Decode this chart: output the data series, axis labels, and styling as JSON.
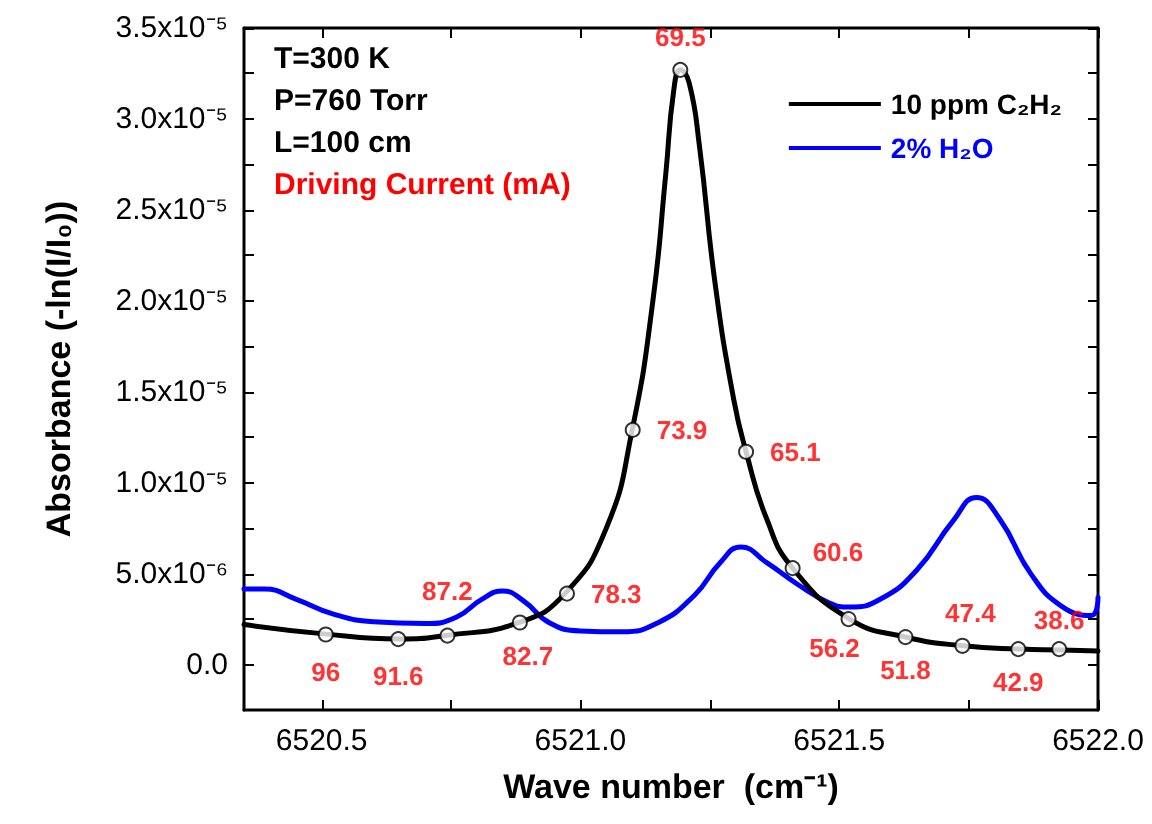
{
  "chart_data": {
    "type": "line",
    "xlabel": "Wave number  (cm⁻¹)",
    "ylabel": "Absorbance (-ln(I/I₀))",
    "xlim": [
      6520.35,
      6522.0
    ],
    "xticks": [
      {
        "value": 6520.5,
        "label": "6520.5"
      },
      {
        "value": 6520.75,
        "label": null
      },
      {
        "value": 6521.0,
        "label": "6521.0"
      },
      {
        "value": 6521.25,
        "label": null
      },
      {
        "value": 6521.5,
        "label": "6521.5"
      },
      {
        "value": 6521.75,
        "label": null
      },
      {
        "value": 6522.0,
        "label": "6522.0"
      }
    ],
    "ylim": [
      -2.5e-06,
      3.5e-05
    ],
    "yticks": [
      {
        "value": 0,
        "label": "0.0"
      },
      {
        "value": 2.5e-06,
        "label": null
      },
      {
        "value": 5e-06,
        "label": "5.0x10⁻⁶"
      },
      {
        "value": 7.5e-06,
        "label": null
      },
      {
        "value": 1e-05,
        "label": "1.0x10⁻⁵"
      },
      {
        "value": 1.25e-05,
        "label": null
      },
      {
        "value": 1.5e-05,
        "label": "1.5x10⁻⁵"
      },
      {
        "value": 1.75e-05,
        "label": null
      },
      {
        "value": 2e-05,
        "label": "2.0x10⁻⁵"
      },
      {
        "value": 2.25e-05,
        "label": null
      },
      {
        "value": 2.5e-05,
        "label": "2.5x10⁻⁵"
      },
      {
        "value": 2.75e-05,
        "label": null
      },
      {
        "value": 3e-05,
        "label": "3.0x10⁻⁵"
      },
      {
        "value": 3.25e-05,
        "label": null
      },
      {
        "value": 3.5e-05,
        "label": "3.5x10⁻⁵"
      }
    ],
    "grid": false,
    "legend": "top right",
    "line_style": "solid",
    "series": [
      {
        "name": "10 ppm C₂H₂",
        "color": "#000000",
        "x": [
          6520.35,
          6520.5,
          6520.65,
          6520.74,
          6520.88,
          6520.97,
          6521.05,
          6521.1,
          6521.14,
          6521.165,
          6521.18,
          6521.193,
          6521.21,
          6521.23,
          6521.26,
          6521.296,
          6521.32,
          6521.36,
          6521.41,
          6521.52,
          6521.63,
          6521.74,
          6521.85,
          6521.93,
          6522.0
        ],
        "values": [
          2.2e-06,
          1.7e-06,
          1.4e-06,
          1.6e-06,
          2.3e-06,
          3.9e-06,
          7.5e-06,
          1.29e-05,
          2e-05,
          2.7e-05,
          3.15e-05,
          3.27e-05,
          3.2e-05,
          2.85e-05,
          2.1e-05,
          1.46e-05,
          1.17e-05,
          8e-06,
          5.3e-06,
          2.5e-06,
          1.5e-06,
          1.03e-06,
          8.5e-07,
          8e-07,
          7.4e-07
        ]
      },
      {
        "name": "2% H₂O",
        "color": "#0000ff",
        "x": [
          6520.35,
          6520.39,
          6520.45,
          6520.52,
          6520.6,
          6520.7,
          6520.76,
          6520.81,
          6520.85,
          6520.89,
          6520.94,
          6521.0,
          6521.08,
          6521.15,
          6521.22,
          6521.27,
          6521.31,
          6521.36,
          6521.42,
          6521.48,
          6521.52,
          6521.58,
          6521.65,
          6521.72,
          6521.765,
          6521.81,
          6521.87,
          6521.93,
          6521.987,
          6522.0
        ],
        "values": [
          4.15e-06,
          4.15e-06,
          3.6e-06,
          2.8e-06,
          2.35e-06,
          2.25e-06,
          2.6e-06,
          3.6e-06,
          4.04e-06,
          3.5e-06,
          2.3e-06,
          1.85e-06,
          1.8e-06,
          2.3e-06,
          3.8e-06,
          5.6e-06,
          6.46e-06,
          5.6e-06,
          4.4e-06,
          3.4e-06,
          3.16e-06,
          3.6e-06,
          5.2e-06,
          7.9e-06,
          9.18e-06,
          8e-06,
          5e-06,
          3.2e-06,
          2.69e-06,
          3.68e-06
        ]
      }
    ],
    "annotations": [
      "T=300 K",
      "P=760 Torr",
      "L=100 cm",
      "Driving Current (mA)",
      {
        "text": "96",
        "x": 6520.508,
        "y": 1.65e-06
      },
      {
        "text": "91.6",
        "x": 6520.648,
        "y": 1.4e-06
      },
      {
        "text": "87.2",
        "x": 6520.743,
        "y": 1.59e-06
      },
      {
        "text": "82.7",
        "x": 6520.883,
        "y": 2.31e-06
      },
      {
        "text": "78.3",
        "x": 6520.974,
        "y": 3.9e-06
      },
      {
        "text": "73.9",
        "x": 6521.101,
        "y": 1.29e-05
      },
      {
        "text": "69.5",
        "x": 6521.193,
        "y": 3.27e-05
      },
      {
        "text": "65.1",
        "x": 6521.32,
        "y": 1.17e-05
      },
      {
        "text": "60.6",
        "x": 6521.41,
        "y": 5.3e-06
      },
      {
        "text": "56.2",
        "x": 6521.518,
        "y": 2.5e-06
      },
      {
        "text": "51.8",
        "x": 6521.628,
        "y": 1.51e-06
      },
      {
        "text": "47.4",
        "x": 6521.738,
        "y": 1.03e-06
      },
      {
        "text": "42.9",
        "x": 6521.846,
        "y": 8.5e-07
      },
      {
        "text": "38.6",
        "x": 6521.925,
        "y": 8.5e-07
      }
    ]
  }
}
